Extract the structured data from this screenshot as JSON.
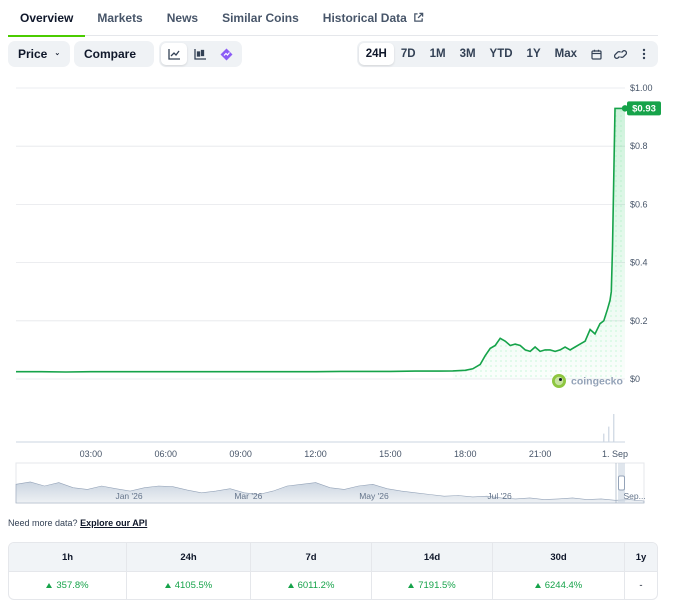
{
  "tabs": [
    {
      "label": "Overview",
      "active": true
    },
    {
      "label": "Markets",
      "active": false
    },
    {
      "label": "News",
      "active": false
    },
    {
      "label": "Similar Coins",
      "active": false
    },
    {
      "label": "Historical Data",
      "active": false,
      "external": true
    }
  ],
  "toolbar": {
    "price_label": "Price",
    "compare_label": "Compare",
    "view_icons": [
      "line-chart-icon",
      "candlestick-chart-icon",
      "tradingview-icon"
    ],
    "ranges": [
      "24H",
      "7D",
      "1M",
      "3M",
      "YTD",
      "1Y",
      "Max"
    ],
    "active_range": "24H",
    "extra_icons": [
      "calendar-icon",
      "link-icon",
      "more-vertical-icon"
    ]
  },
  "colors": {
    "accent": "#4bcc00",
    "line": "#16a34a",
    "price_badge": "#16a34a",
    "grid": "#e5e7eb"
  },
  "chart_data": {
    "type": "line",
    "y_ticks": [
      "$1.00",
      "$0.8",
      "$0.6",
      "$0.4",
      "$0.2",
      "$0"
    ],
    "ylim": [
      0,
      1.0
    ],
    "x_ticks": [
      "03:00",
      "06:00",
      "09:00",
      "12:00",
      "15:00",
      "18:00",
      "21:00",
      "1. Sep"
    ],
    "x_tick_hours": [
      3,
      6,
      9,
      12,
      15,
      18,
      21,
      24
    ],
    "xlim": [
      0,
      24.4
    ],
    "current_price_label": "$0.93",
    "watermark": "coingecko",
    "series": [
      {
        "x": [
          0,
          1,
          2,
          3,
          4,
          5,
          6,
          7,
          8,
          9,
          10,
          11,
          12,
          13,
          14,
          15,
          16,
          17,
          17.5,
          18,
          18.3,
          18.6,
          18.8,
          19.0,
          19.2,
          19.4,
          19.6,
          19.8,
          20.0,
          20.2,
          20.4,
          20.6,
          20.8,
          21.0,
          21.2,
          21.4,
          21.6,
          21.8,
          22.0,
          22.2,
          22.4,
          22.6,
          22.8,
          23.0,
          23.2,
          23.4,
          23.55,
          23.7,
          23.8,
          23.85,
          23.9,
          24.0,
          24.2,
          24.4
        ],
        "y": [
          0.025,
          0.025,
          0.024,
          0.025,
          0.025,
          0.025,
          0.025,
          0.025,
          0.025,
          0.025,
          0.025,
          0.025,
          0.025,
          0.026,
          0.026,
          0.026,
          0.027,
          0.027,
          0.028,
          0.03,
          0.035,
          0.05,
          0.08,
          0.105,
          0.115,
          0.14,
          0.13,
          0.115,
          0.12,
          0.115,
          0.1,
          0.095,
          0.11,
          0.095,
          0.1,
          0.1,
          0.095,
          0.1,
          0.11,
          0.1,
          0.11,
          0.12,
          0.13,
          0.17,
          0.155,
          0.19,
          0.2,
          0.24,
          0.27,
          0.3,
          0.45,
          0.93,
          0.93,
          0.93
        ]
      }
    ],
    "volume_spikes": [
      {
        "x": 23.55,
        "v": 0.3
      },
      {
        "x": 23.75,
        "v": 0.55
      },
      {
        "x": 23.95,
        "v": 1.0
      }
    ],
    "navigator": {
      "labels": [
        "Jan '26",
        "Mar '26",
        "May '26",
        "Jul '26",
        "Sep..."
      ],
      "label_positions": [
        0.18,
        0.37,
        0.57,
        0.77,
        0.985
      ]
    }
  },
  "footer": {
    "prefix": "Need more data?",
    "link": "Explore our API"
  },
  "performance": {
    "headers": [
      "1h",
      "24h",
      "7d",
      "14d",
      "30d",
      "1y"
    ],
    "values": [
      "357.8%",
      "4105.5%",
      "6011.2%",
      "7191.5%",
      "6244.4%",
      "-"
    ],
    "positive": [
      true,
      true,
      true,
      true,
      true,
      false
    ]
  }
}
